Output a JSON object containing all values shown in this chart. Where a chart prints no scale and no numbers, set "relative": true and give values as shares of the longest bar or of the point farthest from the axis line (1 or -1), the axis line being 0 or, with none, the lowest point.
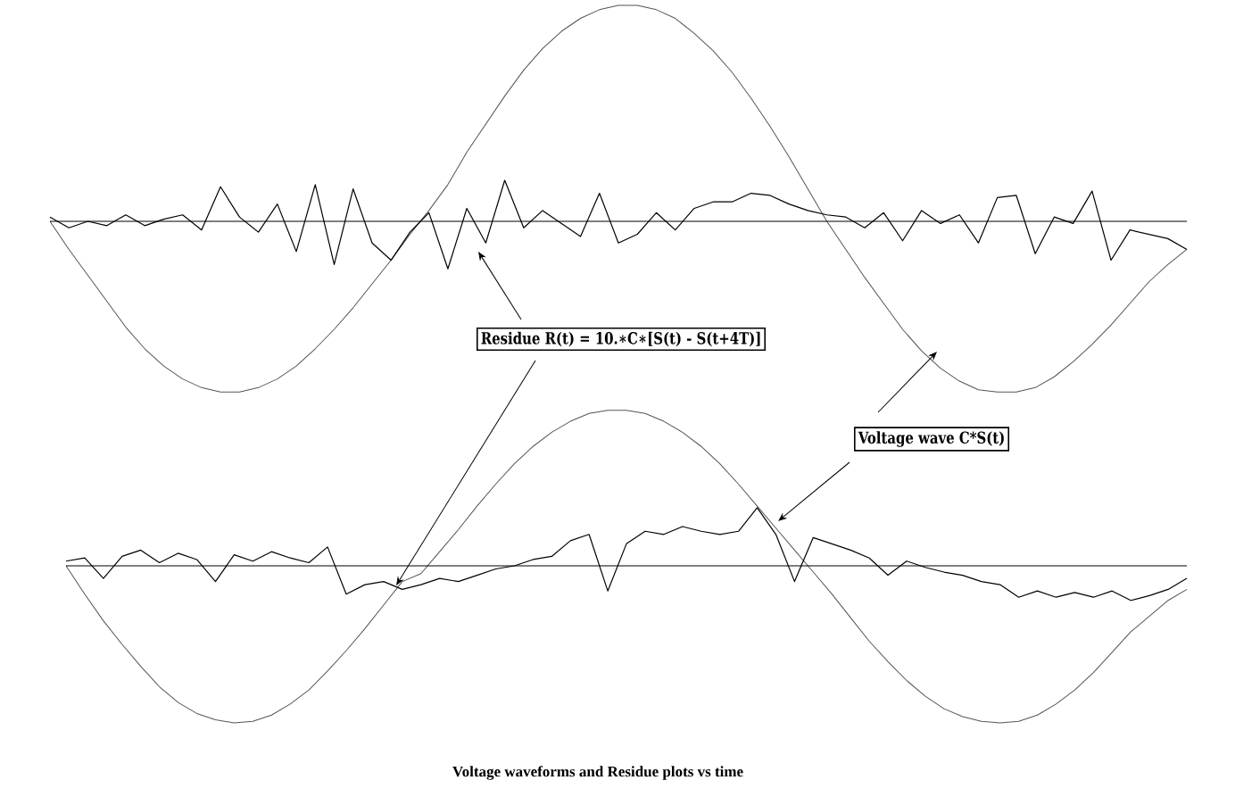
{
  "chart_data": [
    {
      "type": "line",
      "relative": true,
      "categories": [
        null,
        null,
        null,
        null,
        null,
        null,
        null,
        null,
        null,
        null,
        null,
        null,
        null,
        null,
        null,
        null,
        null,
        null,
        null,
        null,
        null,
        null,
        null,
        null,
        null,
        null,
        null,
        null,
        null,
        null,
        null,
        null,
        null,
        null,
        null,
        null,
        null,
        null,
        null,
        null,
        null,
        null,
        null,
        null,
        null,
        null,
        null,
        null,
        null,
        null,
        null,
        null,
        null,
        null,
        null,
        null,
        null,
        null,
        null,
        null,
        null
      ],
      "series": [
        {
          "color": "#555555",
          "values": [
            0,
            -0.13,
            -0.25,
            -0.37,
            -0.49,
            -0.59,
            -0.67,
            -0.73,
            -0.77,
            -0.79,
            -0.79,
            -0.77,
            -0.73,
            -0.67,
            -0.59,
            -0.5,
            -0.4,
            -0.29,
            -0.18,
            -0.06,
            0.05,
            0.17,
            0.32,
            0.45,
            0.58,
            0.7,
            0.8,
            0.88,
            0.94,
            0.98,
            1.0,
            1.0,
            0.98,
            0.94,
            0.87,
            0.79,
            0.69,
            0.57,
            0.44,
            0.3,
            0.15,
            0.0,
            -0.13,
            -0.26,
            -0.38,
            -0.5,
            -0.6,
            -0.68,
            -0.74,
            -0.78,
            -0.79,
            -0.79,
            -0.77,
            -0.72,
            -0.65,
            -0.57,
            -0.48,
            -0.38,
            -0.28,
            -0.2,
            -0.13
          ]
        },
        {
          "color": "#000000",
          "values": [
            0.02,
            -0.03,
            0.0,
            -0.02,
            0.03,
            -0.02,
            0.01,
            0.03,
            -0.04,
            0.16,
            0.02,
            -0.05,
            0.08,
            -0.14,
            0.17,
            -0.2,
            0.15,
            -0.1,
            -0.18,
            -0.05,
            0.04,
            -0.22,
            0.06,
            -0.1,
            0.19,
            -0.03,
            0.05,
            -0.01,
            -0.07,
            0.13,
            -0.1,
            -0.06,
            0.04,
            -0.04,
            0.06,
            0.09,
            0.09,
            0.13,
            0.12,
            0.08,
            0.05,
            0.03,
            0.02,
            -0.03,
            0.04,
            -0.09,
            0.05,
            -0.01,
            0.03,
            -0.1,
            0.11,
            0.12,
            -0.15,
            0.02,
            -0.01,
            0.14,
            -0.18,
            -0.04,
            -0.06,
            -0.08,
            -0.13
          ]
        }
      ],
      "annotations": [
        "Residue  R(t) = 10.∗C∗[S(t) - S(t+4T)]"
      ]
    },
    {
      "type": "line",
      "relative": true,
      "categories": [
        null,
        null,
        null,
        null,
        null,
        null,
        null,
        null,
        null,
        null,
        null,
        null,
        null,
        null,
        null,
        null,
        null,
        null,
        null,
        null,
        null,
        null,
        null,
        null,
        null,
        null,
        null,
        null,
        null,
        null,
        null,
        null,
        null,
        null,
        null,
        null,
        null,
        null,
        null,
        null,
        null,
        null,
        null,
        null,
        null,
        null,
        null,
        null,
        null,
        null,
        null,
        null,
        null,
        null,
        null,
        null,
        null,
        null,
        null,
        null,
        null
      ],
      "series": [
        {
          "color": "#555555",
          "values": [
            0,
            -0.18,
            -0.35,
            -0.5,
            -0.64,
            -0.77,
            -0.87,
            -0.94,
            -0.98,
            -1.0,
            -0.99,
            -0.95,
            -0.88,
            -0.79,
            -0.67,
            -0.54,
            -0.4,
            -0.25,
            -0.1,
            -0.05,
            0.09,
            0.23,
            0.38,
            0.52,
            0.65,
            0.76,
            0.85,
            0.92,
            0.97,
            0.99,
            0.99,
            0.97,
            0.92,
            0.85,
            0.76,
            0.65,
            0.52,
            0.38,
            0.24,
            0.1,
            -0.04,
            -0.18,
            -0.33,
            -0.48,
            -0.61,
            -0.73,
            -0.83,
            -0.91,
            -0.96,
            -0.99,
            -1.0,
            -0.99,
            -0.95,
            -0.88,
            -0.79,
            -0.68,
            -0.55,
            -0.42,
            -0.32,
            -0.22,
            -0.15
          ]
        },
        {
          "color": "#000000",
          "values": [
            0.03,
            0.05,
            -0.08,
            0.06,
            0.1,
            0.02,
            0.08,
            0.04,
            -0.1,
            0.07,
            0.03,
            0.09,
            0.05,
            0.02,
            0.12,
            -0.18,
            -0.12,
            -0.1,
            -0.15,
            -0.12,
            -0.08,
            -0.1,
            -0.06,
            -0.02,
            0.0,
            0.04,
            0.06,
            0.16,
            0.2,
            -0.16,
            0.14,
            0.22,
            0.2,
            0.25,
            0.22,
            0.2,
            0.22,
            0.37,
            0.2,
            -0.1,
            0.18,
            0.14,
            0.1,
            0.05,
            -0.06,
            0.03,
            -0.01,
            -0.04,
            -0.06,
            -0.1,
            -0.12,
            -0.2,
            -0.16,
            -0.2,
            -0.17,
            -0.2,
            -0.16,
            -0.22,
            -0.19,
            -0.15,
            -0.08
          ]
        }
      ],
      "annotations": [
        "Voltage wave  C*S(t)",
        "Voltage waveforms and Residue plots vs time"
      ]
    }
  ]
}
